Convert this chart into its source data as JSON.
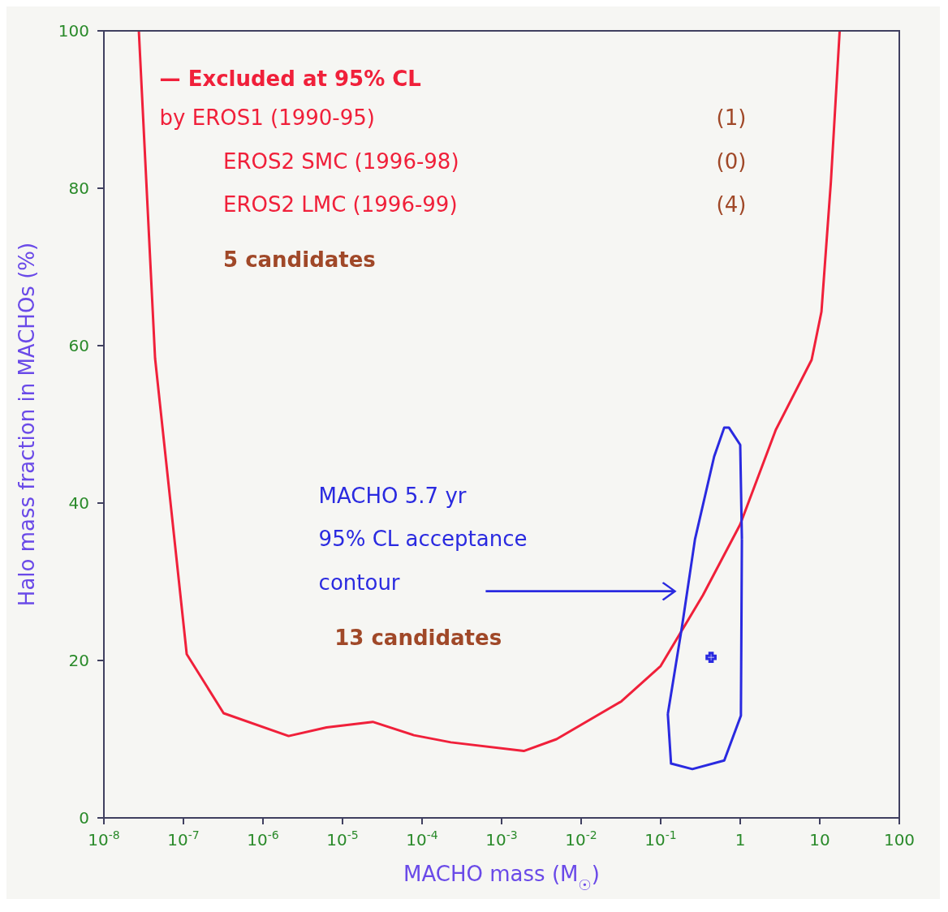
{
  "chart_data": {
    "type": "line",
    "xlabel": "MACHO mass (M$_{☉}$)",
    "ylabel": "Halo mass fraction in MACHOs (%)",
    "log": "x",
    "xlim": [
      1e-08,
      100
    ],
    "ylim": [
      0,
      100
    ],
    "xticks": [
      {
        "value": 1e-08,
        "label": "10$^{-8}$"
      },
      {
        "value": 1e-07,
        "label": "10$^{-7}$"
      },
      {
        "value": 1e-06,
        "label": "10$^{-6}$"
      },
      {
        "value": 1e-05,
        "label": "10$^{-5}$"
      },
      {
        "value": 0.0001,
        "label": "10$^{-4}$"
      },
      {
        "value": 0.001,
        "label": "10$^{-3}$"
      },
      {
        "value": 0.01,
        "label": "10$^{-2}$"
      },
      {
        "value": 0.1,
        "label": "10$^{-1}$"
      },
      1,
      10,
      100
    ],
    "yticks": [
      0,
      20,
      40,
      60,
      80,
      100
    ],
    "series": [
      {
        "color": "#f0203a",
        "x": [
          2.75e-08,
          4.4e-08,
          1.1e-07,
          3.2e-07,
          2.1e-06,
          6.3e-06,
          2.4e-05,
          7.9e-05,
          0.00023,
          0.0019,
          0.0049,
          0.032,
          0.1,
          0.34,
          1.0,
          2.8,
          7.9,
          10.5,
          13.8,
          17.8
        ],
        "values": [
          100,
          58.4,
          20.8,
          13.3,
          10.4,
          11.5,
          12.2,
          10.5,
          9.6,
          8.5,
          10,
          14.8,
          19.3,
          28.3,
          37.3,
          49.3,
          58.2,
          64.3,
          80.8,
          100
        ]
      },
      {
        "color": "#2a2ae0",
        "x": [
          0.123,
          0.135,
          0.25,
          0.63,
          1.02,
          1.05,
          null,
          0.123,
          0.186,
          0.27,
          0.47,
          0.63,
          0.72,
          1.0,
          1.05
        ],
        "values": [
          13.2,
          6.9,
          6.2,
          7.3,
          13.0,
          35.4,
          null,
          13.2,
          24.4,
          35.4,
          45.9,
          49.6,
          49.6,
          47.4,
          35.4
        ]
      },
      {
        "type": "scatter",
        "color": "#2a2ae0",
        "marker": "cross",
        "x": [
          0.43
        ],
        "values": [
          20.4
        ]
      }
    ],
    "annotations": [
      "— Excluded at 95% CL",
      "by EROS1 (1990-95)",
      "EROS2 SMC (1996-98)",
      "EROS2 LMC (1996-99)",
      "(1)",
      "(0)",
      "(4)",
      "5 candidates",
      "MACHO 5.7 yr",
      "95% CL acceptance",
      "contour",
      "13 candidates"
    ]
  }
}
